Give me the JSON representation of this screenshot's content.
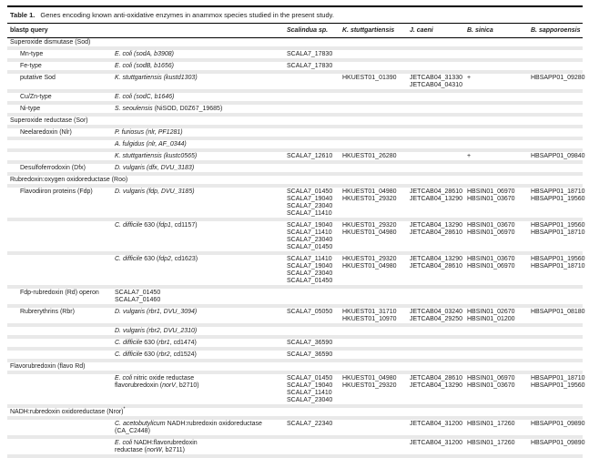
{
  "title": {
    "number": "Table 1.",
    "text": "Genes encoding known anti-oxidative enzymes in anammox species studied in the present study."
  },
  "header": {
    "query": "blastp query",
    "species": [
      "Scalindua sp.",
      "K. stuttgartiensis",
      "J. caeni",
      "B. sinica",
      "B. sapporoensis"
    ]
  },
  "colors": {
    "row_band": "#e9e9e9",
    "rule": "#000000",
    "text": "#1c1c1c"
  },
  "rows": [
    {
      "type": "section",
      "label": "Superoxide dismutase (Sod)"
    },
    {
      "type": "item",
      "label": "Mn-type",
      "source": [
        [
          {
            "t": "E. coli (sodA, b3908)",
            "i": true
          }
        ]
      ],
      "values": [
        [
          "SCALA7_17830"
        ],
        [],
        [],
        [],
        []
      ]
    },
    {
      "type": "item",
      "label": "Fe-type",
      "source": [
        [
          {
            "t": "E. coli (sodB, b1656)",
            "i": true
          }
        ]
      ],
      "values": [
        [
          "SCALA7_17830"
        ],
        [],
        [],
        [],
        []
      ]
    },
    {
      "type": "item",
      "label": "putative Sod",
      "source": [
        [
          {
            "t": "K. stuttgartiensis (kustd1303)",
            "i": true
          }
        ]
      ],
      "values": [
        [],
        [
          "HKUEST01_01390"
        ],
        [
          "JETCAB04_31330",
          "JETCAB04_04310"
        ],
        [
          "+"
        ],
        [
          "HBSAPP01_09280"
        ]
      ]
    },
    {
      "type": "item",
      "label": "Cu/Zn-type",
      "source": [
        [
          {
            "t": "E. coli (sodC, b1646)",
            "i": true
          }
        ]
      ],
      "values": [
        [],
        [],
        [],
        [],
        []
      ]
    },
    {
      "type": "item",
      "label": "Ni-type",
      "source": [
        [
          {
            "t": "S. seoulensis",
            "i": true
          },
          {
            "t": " (NiSOD, D0Z67_19685)",
            "i": false
          }
        ]
      ],
      "values": [
        [],
        [],
        [],
        [],
        []
      ]
    },
    {
      "type": "section",
      "label": "Superoxide reductase (Sor)"
    },
    {
      "type": "item",
      "label": "Neelaredoxin (Nlr)",
      "source": [
        [
          {
            "t": "P. furiosus (nlr, PF1281)",
            "i": true
          }
        ]
      ],
      "values": [
        [],
        [],
        [],
        [],
        []
      ]
    },
    {
      "type": "item",
      "label": "",
      "source": [
        [
          {
            "t": "A. fulgidus (nlr, AF_0344)",
            "i": true
          }
        ]
      ],
      "values": [
        [],
        [],
        [],
        [],
        []
      ]
    },
    {
      "type": "item",
      "label": "",
      "source": [
        [
          {
            "t": "K. stuttgartiensis (kustc0565)",
            "i": true
          }
        ]
      ],
      "values": [
        [
          "SCALA7_12610"
        ],
        [
          "HKUEST01_26280"
        ],
        [],
        [
          "+"
        ],
        [
          "HBSAPP01_09840"
        ]
      ]
    },
    {
      "type": "item",
      "label": "Desulfoferrodoxin (Dfx)",
      "source": [
        [
          {
            "t": "D. vulgaris (dfx, DVU_3183)",
            "i": true
          }
        ]
      ],
      "values": [
        [],
        [],
        [],
        [],
        []
      ]
    },
    {
      "type": "section",
      "label": "Rubredoxin:oxygen oxidoreductase (Roo)"
    },
    {
      "type": "item",
      "label": "Flavodiiron proteins (Fdp)",
      "source": [
        [
          {
            "t": "D. vulgaris (fdp, DVU_3185)",
            "i": true
          }
        ]
      ],
      "values": [
        [
          "SCALA7_01450",
          "SCALA7_19040",
          "SCALA7_23040",
          "SCALA7_11410"
        ],
        [
          "HKUEST01_04980",
          "HKUEST01_29320"
        ],
        [
          "JETCAB04_28610",
          "JETCAB04_13290"
        ],
        [
          "HBSIN01_06970",
          "HBSIN01_03670"
        ],
        [
          "HBSAPP01_18710",
          "HBSAPP01_19560"
        ]
      ]
    },
    {
      "type": "item",
      "label": "",
      "source": [
        [
          {
            "t": "C. difficile",
            "i": true
          },
          {
            "t": " 630 (",
            "i": false
          },
          {
            "t": "fdp1",
            "i": true
          },
          {
            "t": ", cd1157)",
            "i": false
          }
        ]
      ],
      "values": [
        [
          "SCALA7_19040",
          "SCALA7_11410",
          "SCALA7_23040",
          "SCALA7_01450"
        ],
        [
          "HKUEST01_29320",
          "HKUEST01_04980"
        ],
        [
          "JETCAB04_13290",
          "JETCAB04_28610"
        ],
        [
          "HBSIN01_03670",
          "HBSIN01_06970"
        ],
        [
          "HBSAPP01_19560",
          "HBSAPP01_18710"
        ]
      ]
    },
    {
      "type": "item",
      "label": "",
      "source": [
        [
          {
            "t": "C. difficile",
            "i": true
          },
          {
            "t": " 630 (",
            "i": false
          },
          {
            "t": "fdp2",
            "i": true
          },
          {
            "t": ", cd1623)",
            "i": false
          }
        ]
      ],
      "values": [
        [
          "SCALA7_11410",
          "SCALA7_19040",
          "SCALA7_23040",
          "SCALA7_01450"
        ],
        [
          "HKUEST01_29320",
          "HKUEST01_04980"
        ],
        [
          "JETCAB04_13290",
          "JETCAB04_28610"
        ],
        [
          "HBSIN01_03670",
          "HBSIN01_06970"
        ],
        [
          "HBSAPP01_19560",
          "HBSAPP01_18710"
        ]
      ]
    },
    {
      "type": "item",
      "label": "Fdp-rubredoxin (Rd) operon",
      "source": [
        [
          {
            "t": "SCALA7_01450",
            "i": false
          }
        ],
        [
          {
            "t": "SCALA7_01460",
            "i": false
          }
        ]
      ],
      "values": [
        [],
        [],
        [],
        [],
        []
      ]
    },
    {
      "type": "item",
      "label": "Rubrerythrins (Rbr)",
      "source": [
        [
          {
            "t": "D. vulgaris (rbr1, DVU_3094)",
            "i": true
          }
        ]
      ],
      "values": [
        [
          "SCALA7_05050"
        ],
        [
          "HKUEST01_31710",
          "HKUEST01_10970"
        ],
        [
          "JETCAB04_03240",
          "JETCAB04_29250"
        ],
        [
          "HBSIN01_02670",
          "HBSIN01_01200"
        ],
        [
          "HBSAPP01_08180"
        ]
      ]
    },
    {
      "type": "item",
      "label": "",
      "source": [
        [
          {
            "t": "D. vulgaris (rbr2, DVU_2310)",
            "i": true
          }
        ]
      ],
      "values": [
        [],
        [],
        [],
        [],
        []
      ]
    },
    {
      "type": "item",
      "label": "",
      "source": [
        [
          {
            "t": "C. difficile",
            "i": true
          },
          {
            "t": " 630 (",
            "i": false
          },
          {
            "t": "rbr1",
            "i": true
          },
          {
            "t": ", cd1474)",
            "i": false
          }
        ]
      ],
      "values": [
        [
          "SCALA7_36590"
        ],
        [],
        [],
        [],
        []
      ]
    },
    {
      "type": "item",
      "label": "",
      "source": [
        [
          {
            "t": "C. difficile",
            "i": true
          },
          {
            "t": " 630 (",
            "i": false
          },
          {
            "t": "rbr2",
            "i": true
          },
          {
            "t": ", cd1524)",
            "i": false
          }
        ]
      ],
      "values": [
        [
          "SCALA7_36590"
        ],
        [],
        [],
        [],
        []
      ]
    },
    {
      "type": "section",
      "label": "Flavorubredoxin (flavo Rd)"
    },
    {
      "type": "item",
      "label": "",
      "source": [
        [
          {
            "t": "E. coli",
            "i": true
          },
          {
            "t": " nitric oxide reductase",
            "i": false
          }
        ],
        [
          {
            "t": "flavorubredoxin (",
            "i": false
          },
          {
            "t": "norV",
            "i": true
          },
          {
            "t": ", b2710)",
            "i": false
          }
        ]
      ],
      "values": [
        [
          "SCALA7_01450",
          "SCALA7_19040",
          "SCALA7_11410",
          "SCALA7_23040"
        ],
        [
          "HKUEST01_04980",
          "HKUEST01_29320"
        ],
        [
          "JETCAB04_28610",
          "JETCAB04_13290"
        ],
        [
          "HBSIN01_06970",
          "HBSIN01_03670"
        ],
        [
          "HBSAPP01_18710",
          "HBSAPP01_19560"
        ]
      ]
    },
    {
      "type": "section",
      "label": "NADH:rubredoxin oxidoreductase (Nror)",
      "sup": "*"
    },
    {
      "type": "item",
      "label": "",
      "source": [
        [
          {
            "t": "C. acetobutylicum",
            "i": true
          },
          {
            "t": " NADH:rubredoxin oxidoreductase",
            "i": false
          }
        ],
        [
          {
            "t": "(CA_C2448)",
            "i": false
          }
        ]
      ],
      "values": [
        [
          "SCALA7_22340"
        ],
        [],
        [
          "JETCAB04_31200"
        ],
        [
          "HBSIN01_17260"
        ],
        [
          "HBSAPP01_09890"
        ]
      ]
    },
    {
      "type": "item",
      "label": "",
      "source": [
        [
          {
            "t": "E. coli",
            "i": true
          },
          {
            "t": " NADH:flavorubredoxin",
            "i": false
          }
        ],
        [
          {
            "t": "reductase (",
            "i": false
          },
          {
            "t": "norW",
            "i": true
          },
          {
            "t": ", b2711)",
            "i": false
          }
        ]
      ],
      "values": [
        [],
        [],
        [
          "JETCAB04_31200"
        ],
        [
          "HBSIN01_17260"
        ],
        [
          "HBSAPP01_09890"
        ]
      ]
    }
  ]
}
